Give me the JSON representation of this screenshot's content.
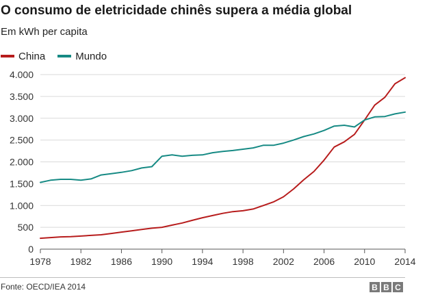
{
  "chart_data": {
    "type": "line",
    "title": "O consumo de eletricidade chinês supera a média global",
    "subtitle": "Em kWh per capita",
    "xlabel": "",
    "ylabel": "",
    "xlim": [
      1978,
      2014
    ],
    "ylim": [
      0,
      4000
    ],
    "x_ticks": [
      1978,
      1982,
      1986,
      1990,
      1994,
      1998,
      2002,
      2006,
      2010,
      2014
    ],
    "x_tick_labels": [
      "1978",
      "1982",
      "1986",
      "1990",
      "1994",
      "1998",
      "2002",
      "2006",
      "2010",
      "2014"
    ],
    "y_ticks": [
      0,
      500,
      1000,
      1500,
      2000,
      2500,
      3000,
      3500,
      4000
    ],
    "y_tick_labels": [
      "0",
      "500",
      "1.000",
      "1.500",
      "2.000",
      "2.500",
      "3.000",
      "3.500",
      "4.000"
    ],
    "grid": true,
    "legend_position": "top-left",
    "x": [
      1978,
      1979,
      1980,
      1981,
      1982,
      1983,
      1984,
      1985,
      1986,
      1987,
      1988,
      1989,
      1990,
      1991,
      1992,
      1993,
      1994,
      1995,
      1996,
      1997,
      1998,
      1999,
      2000,
      2001,
      2002,
      2003,
      2004,
      2005,
      2006,
      2007,
      2008,
      2009,
      2010,
      2011,
      2012,
      2013,
      2014
    ],
    "series": [
      {
        "name": "China",
        "color": "#b71c1c",
        "values": [
          250,
          265,
          280,
          285,
          300,
          315,
          330,
          360,
          390,
          420,
          450,
          480,
          500,
          550,
          600,
          660,
          720,
          770,
          820,
          860,
          880,
          920,
          1000,
          1080,
          1200,
          1380,
          1590,
          1780,
          2040,
          2340,
          2460,
          2630,
          2960,
          3300,
          3480,
          3790,
          3930
        ]
      },
      {
        "name": "Mundo",
        "color": "#168a84",
        "values": [
          1530,
          1580,
          1600,
          1600,
          1580,
          1610,
          1700,
          1730,
          1760,
          1800,
          1860,
          1890,
          2130,
          2160,
          2130,
          2150,
          2160,
          2210,
          2240,
          2260,
          2290,
          2320,
          2380,
          2380,
          2430,
          2500,
          2580,
          2640,
          2720,
          2820,
          2840,
          2800,
          2960,
          3030,
          3040,
          3100,
          3140
        ]
      }
    ]
  },
  "source": "Fonte: OECD/IEA 2014",
  "logo": {
    "letters": [
      "B",
      "B",
      "C"
    ],
    "brand": "BBC"
  }
}
